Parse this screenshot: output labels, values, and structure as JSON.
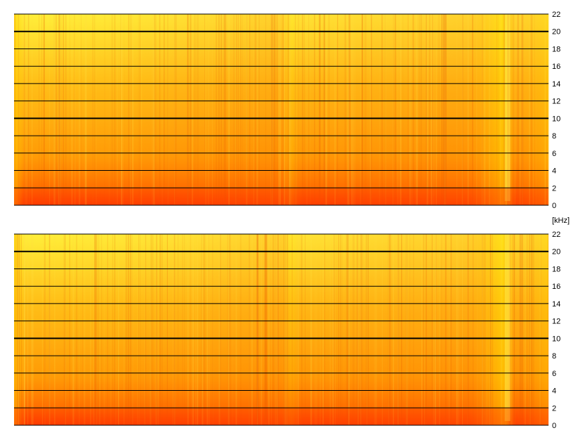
{
  "chart_data": [
    {
      "type": "heatmap",
      "name": "top spectrogram",
      "ylim": [
        0,
        22
      ],
      "yticks": [
        0,
        2,
        4,
        6,
        8,
        10,
        12,
        14,
        16,
        18,
        20,
        22
      ],
      "ytick_labels": [
        "0",
        "2",
        "4",
        "6",
        "8",
        "10",
        "12",
        "14",
        "16",
        "18",
        "20",
        "22"
      ],
      "grid": true,
      "colormap": [
        "#ff2a00",
        "#ff6a00",
        "#ffa400",
        "#ffd21a",
        "#fff23a"
      ]
    },
    {
      "type": "heatmap",
      "name": "bottom spectrogram",
      "ylim": [
        0,
        22
      ],
      "yticks": [
        0,
        2,
        4,
        6,
        8,
        10,
        12,
        14,
        16,
        18,
        20,
        22
      ],
      "ytick_labels": [
        "0",
        "2",
        "4",
        "6",
        "8",
        "10",
        "12",
        "14",
        "16",
        "18",
        "20",
        "22"
      ],
      "grid": true,
      "colormap": [
        "#ff2a00",
        "#ff6a00",
        "#ffa400",
        "#ffd21a",
        "#fff23a"
      ]
    }
  ],
  "unit_label": "[kHz]"
}
